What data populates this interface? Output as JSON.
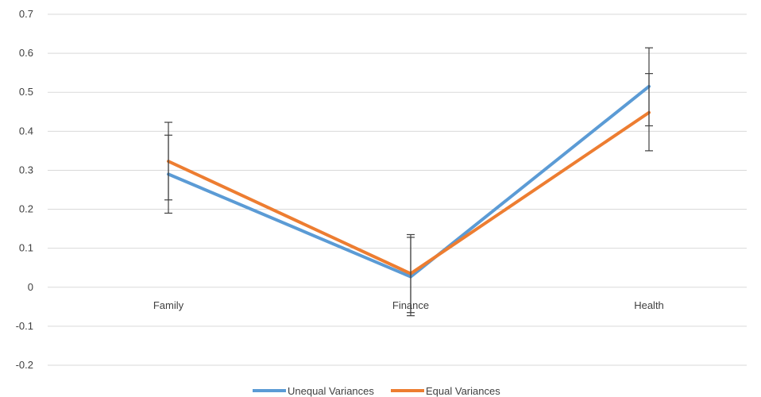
{
  "chart_data": {
    "type": "line",
    "categories": [
      "Family",
      "Finance",
      "Health"
    ],
    "ylim": [
      -0.2,
      0.7
    ],
    "yticks": [
      -0.2,
      -0.1,
      0,
      0.1,
      0.2,
      0.3,
      0.4,
      0.5,
      0.6,
      0.7
    ],
    "ytick_labels": [
      "-0.2",
      "-0.1",
      "0",
      "0.1",
      "0.2",
      "0.3",
      "0.4",
      "0.5",
      "0.6",
      "0.7"
    ],
    "grid": true,
    "legend_position": "bottom",
    "series": [
      {
        "name": "Unequal Variances",
        "color": "#5B9BD5",
        "values": [
          0.29,
          0.027,
          0.515
        ],
        "error_low": [
          0.19,
          -0.073,
          0.35
        ],
        "error_high": [
          0.39,
          0.128,
          0.614
        ]
      },
      {
        "name": "Equal Variances",
        "color": "#ED7D31",
        "values": [
          0.323,
          0.035,
          0.448
        ],
        "error_low": [
          0.224,
          -0.065,
          0.414
        ],
        "error_high": [
          0.423,
          0.135,
          0.548
        ]
      }
    ]
  }
}
